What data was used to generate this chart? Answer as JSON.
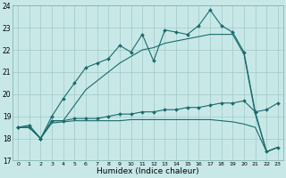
{
  "xlabel": "Humidex (Indice chaleur)",
  "bg_color": "#c8e8e8",
  "grid_color": "#a0c8c8",
  "line_color": "#1a6b6b",
  "xlim": [
    -0.5,
    23.5
  ],
  "ylim": [
    17,
    24
  ],
  "yticks": [
    17,
    18,
    19,
    20,
    21,
    22,
    23,
    24
  ],
  "xticks": [
    0,
    1,
    2,
    3,
    4,
    5,
    6,
    7,
    8,
    9,
    10,
    11,
    12,
    13,
    14,
    15,
    16,
    17,
    18,
    19,
    20,
    21,
    22,
    23
  ],
  "line1_x": [
    0,
    1,
    2,
    3,
    4,
    5,
    6,
    7,
    8,
    9,
    10,
    11,
    12,
    13,
    14,
    15,
    16,
    17,
    18,
    19,
    20,
    21,
    22,
    23
  ],
  "line1_y": [
    18.5,
    18.6,
    18.0,
    19.0,
    19.8,
    20.5,
    21.2,
    21.4,
    21.6,
    22.2,
    21.9,
    22.7,
    21.5,
    22.9,
    22.8,
    22.7,
    23.1,
    23.8,
    23.1,
    22.8,
    21.9,
    19.2,
    19.3,
    19.6
  ],
  "line2_x": [
    0,
    1,
    2,
    3,
    4,
    5,
    6,
    7,
    8,
    9,
    10,
    11,
    12,
    13,
    14,
    15,
    16,
    17,
    18,
    19,
    20,
    21,
    22,
    23
  ],
  "line2_y": [
    18.5,
    18.5,
    18.0,
    18.8,
    18.8,
    19.5,
    20.2,
    20.6,
    21.0,
    21.4,
    21.7,
    22.0,
    22.1,
    22.3,
    22.4,
    22.5,
    22.6,
    22.7,
    22.7,
    22.7,
    21.8,
    19.1,
    17.4,
    17.6
  ],
  "line3_x": [
    0,
    1,
    2,
    3,
    4,
    5,
    6,
    7,
    8,
    9,
    10,
    11,
    12,
    13,
    14,
    15,
    16,
    17,
    18,
    19,
    20,
    21,
    22,
    23
  ],
  "line3_y": [
    18.5,
    18.5,
    18.0,
    18.8,
    18.8,
    18.9,
    18.9,
    18.9,
    19.0,
    19.1,
    19.1,
    19.2,
    19.2,
    19.3,
    19.3,
    19.4,
    19.4,
    19.5,
    19.6,
    19.6,
    19.7,
    19.2,
    17.4,
    17.6
  ],
  "line4_x": [
    0,
    1,
    2,
    3,
    4,
    5,
    6,
    7,
    8,
    9,
    10,
    11,
    12,
    13,
    14,
    15,
    16,
    17,
    18,
    19,
    20,
    21,
    22,
    23
  ],
  "line4_y": [
    18.5,
    18.5,
    18.0,
    18.7,
    18.75,
    18.8,
    18.8,
    18.8,
    18.8,
    18.8,
    18.85,
    18.85,
    18.85,
    18.85,
    18.85,
    18.85,
    18.85,
    18.85,
    18.8,
    18.75,
    18.65,
    18.5,
    17.4,
    17.6
  ],
  "line1_marker": true,
  "line3_marker": true
}
